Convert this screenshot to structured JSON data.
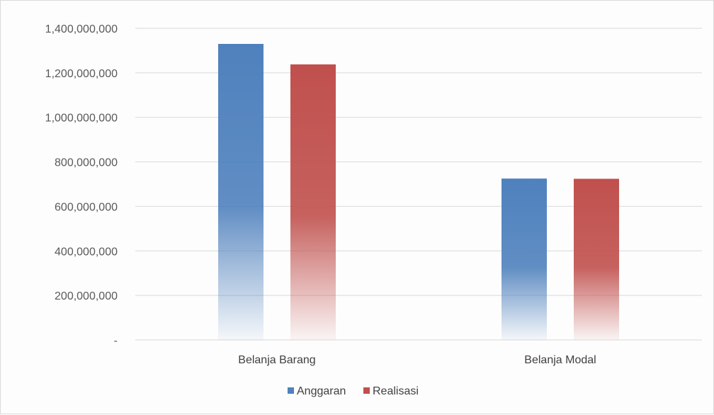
{
  "chart_data": {
    "type": "bar",
    "categories": [
      "Belanja Barang",
      "Belanja Modal"
    ],
    "series": [
      {
        "name": "Anggaran",
        "values": [
          1330000000,
          725000000
        ],
        "color": "#4f81bd"
      },
      {
        "name": "Realisasi",
        "values": [
          1238000000,
          724000000
        ],
        "color": "#c0504d"
      }
    ],
    "ylim": [
      0,
      1400000000
    ],
    "y_ticks": [
      {
        "value": 0,
        "label": "-"
      },
      {
        "value": 200000000,
        "label": "200,000,000"
      },
      {
        "value": 400000000,
        "label": "400,000,000"
      },
      {
        "value": 600000000,
        "label": "600,000,000"
      },
      {
        "value": 800000000,
        "label": "800,000,000"
      },
      {
        "value": 1000000000,
        "label": "1,000,000,000"
      },
      {
        "value": 1200000000,
        "label": "1,200,000,000"
      },
      {
        "value": 1400000000,
        "label": "1,400,000,000"
      }
    ],
    "grid": true,
    "legend_position": "bottom"
  }
}
